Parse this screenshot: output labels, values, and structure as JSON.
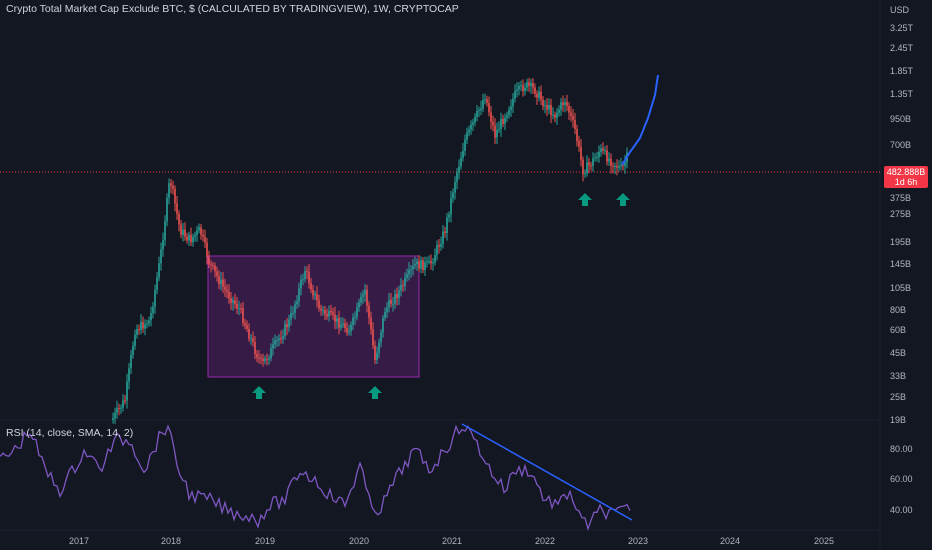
{
  "chart": {
    "title": "Crypto Total Market Cap Exclude BTC, $ (CALCULATED BY TRADINGVIEW), 1W, CRYPTOCAP",
    "currency": "USD",
    "price_axis_labels": [
      "3.25T",
      "2.45T",
      "1.85T",
      "1.35T",
      "950B",
      "700B",
      "375B",
      "275B",
      "195B",
      "145B",
      "105B",
      "80B",
      "60B",
      "45B",
      "33B",
      "25B",
      "19B"
    ],
    "last_price": "482.888B",
    "last_price_sub": "1d 6h",
    "rsi_title": "RSI (14, close, SMA, 14, 2)",
    "rsi_axis_labels": [
      "80.00",
      "60.00",
      "40.00"
    ],
    "time_axis_labels": [
      "2017",
      "2018",
      "2019",
      "2020",
      "2021",
      "2022",
      "2023",
      "2024",
      "2025"
    ]
  },
  "chart_data": {
    "type": "candlestick",
    "title": "Crypto Total Market Cap Exclude BTC, $ (CALCULATED BY TRADINGVIEW), 1W, CRYPTOCAP",
    "x": [
      "2017-01",
      "2017-06",
      "2018-01",
      "2018-06",
      "2018-12",
      "2019-06",
      "2019-12",
      "2020-03",
      "2020-06",
      "2020-09",
      "2021-01",
      "2021-05",
      "2021-08",
      "2021-11",
      "2022-02",
      "2022-06",
      "2022-09",
      "2022-11",
      "2023-01",
      "2023-03"
    ],
    "y": [
      16,
      60,
      430,
      150,
      40,
      135,
      55,
      42,
      90,
      150,
      380,
      1300,
      800,
      1700,
      1150,
      430,
      630,
      440,
      560,
      1750
    ],
    "y_unit": "USD (billions)",
    "y_scale": "log",
    "ylim": [
      19,
      3250
    ],
    "colors": {
      "up": "#26a69a",
      "down": "#ef5350",
      "projection": "#2962ff",
      "rsi": "#7e57c2",
      "box": "#9c27b0"
    },
    "annotations": [
      "accumulation box 2018-2020",
      "up arrows at lows",
      "RSI descending trendline"
    ]
  },
  "rsi_data": {
    "x": [
      "2017",
      "2018",
      "2019",
      "2020",
      "2021",
      "2022",
      "2023"
    ],
    "values": [
      82,
      92,
      33,
      70,
      96,
      60,
      38
    ]
  }
}
